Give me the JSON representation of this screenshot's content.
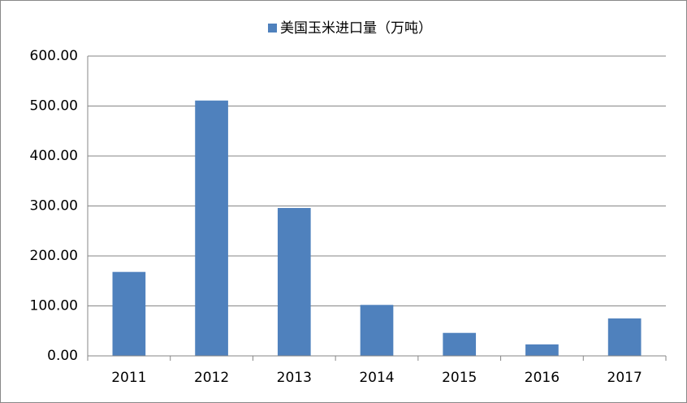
{
  "chart_data": {
    "type": "bar",
    "categories": [
      "2011",
      "2012",
      "2013",
      "2014",
      "2015",
      "2016",
      "2017"
    ],
    "series": [
      {
        "name": "美国玉米进口量（万吨）",
        "color": "#4f81bd",
        "values": [
          168,
          511,
          296,
          102,
          46,
          23,
          75
        ]
      }
    ],
    "ylim": [
      0,
      600
    ],
    "yticks": [
      {
        "value": 0,
        "label": "0.00"
      },
      {
        "value": 100,
        "label": "100.00"
      },
      {
        "value": 200,
        "label": "200.00"
      },
      {
        "value": 300,
        "label": "300.00"
      },
      {
        "value": 400,
        "label": "400.00"
      },
      {
        "value": 500,
        "label": "500.00"
      },
      {
        "value": 600,
        "label": "600.00"
      }
    ],
    "grid": true,
    "legend": "top"
  }
}
